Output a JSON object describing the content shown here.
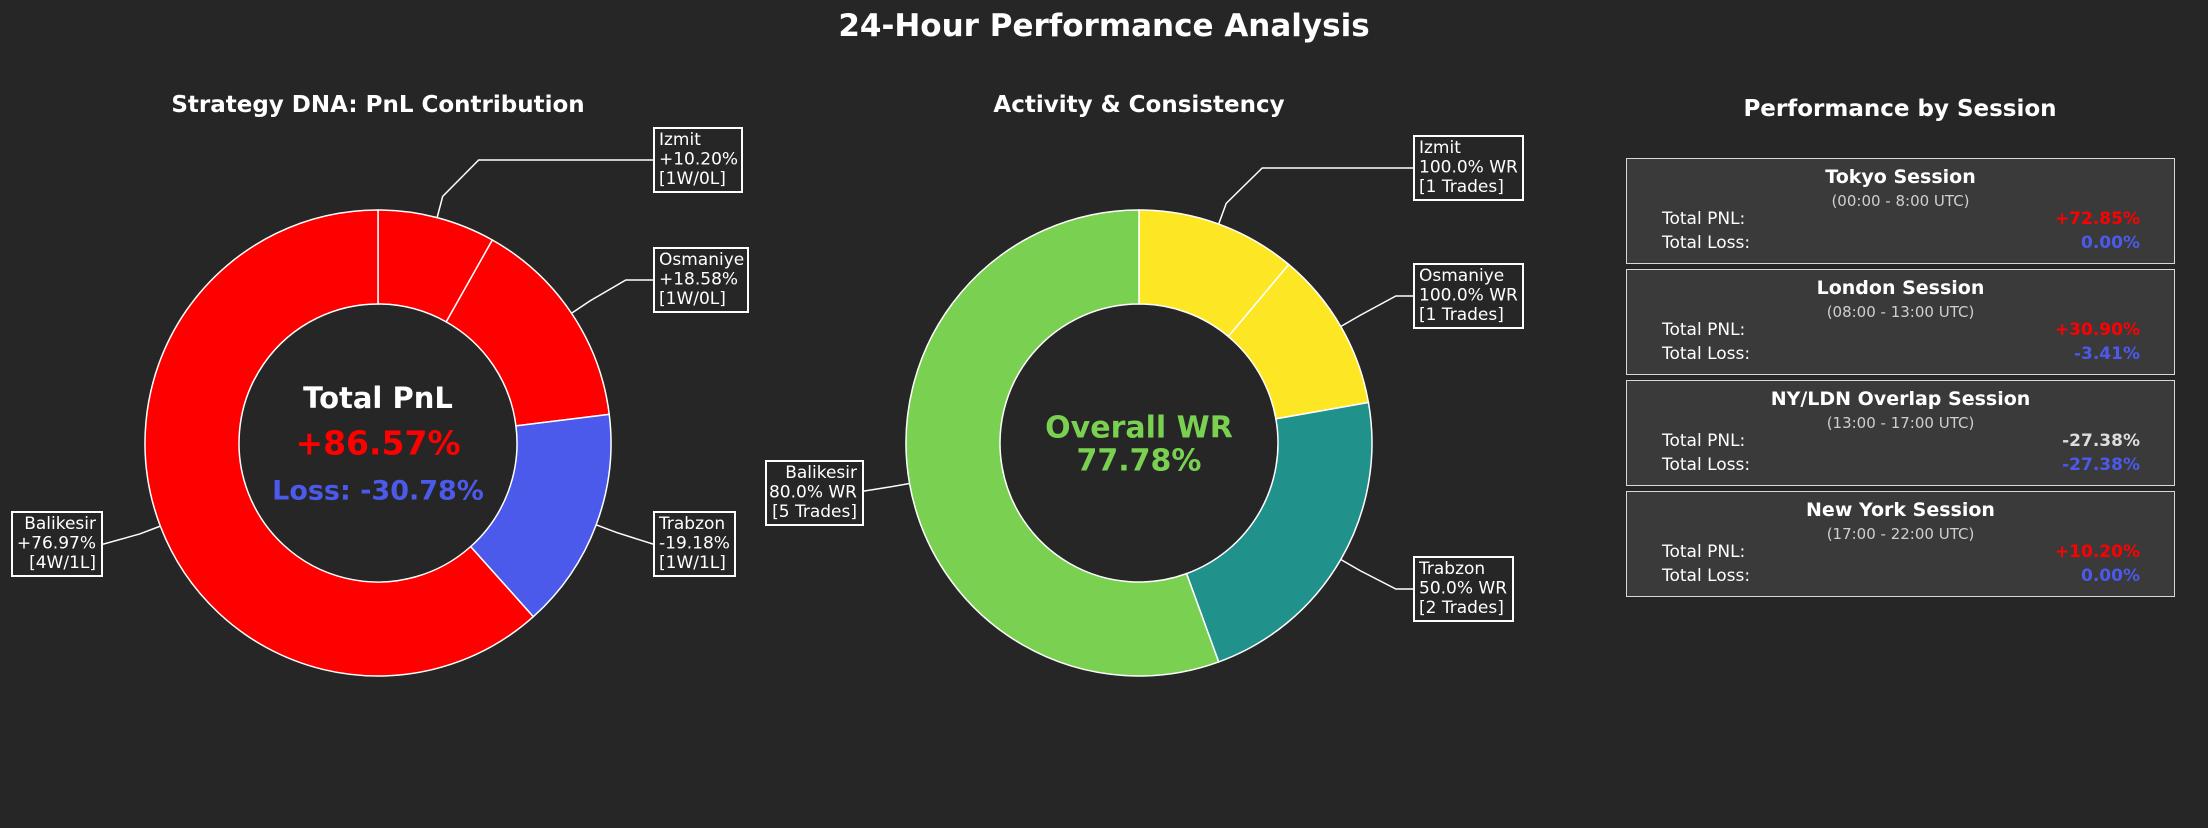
{
  "title": "24-Hour Performance Analysis",
  "colors": {
    "background": "#262626",
    "positive": "#ff0000",
    "negative": "#4b5aea",
    "neutral": "#dddddd",
    "wr_green": "#7ad151",
    "wr_yellow": "#fde725",
    "wr_teal": "#21918c"
  },
  "chart_data": [
    {
      "type": "pie",
      "title": "Strategy DNA: PnL Contribution",
      "center": {
        "heading": "Total PnL",
        "value": "+86.57%",
        "loss": "Loss: -30.78%"
      },
      "slices": [
        {
          "name": "Izmit",
          "value": 10.2,
          "color": "#ff0000",
          "label": [
            "Izmit",
            "+10.20%",
            "[1W/0L]"
          ]
        },
        {
          "name": "Osmaniye",
          "value": 18.58,
          "color": "#ff0000",
          "label": [
            "Osmaniye",
            "+18.58%",
            "[1W/0L]"
          ]
        },
        {
          "name": "Trabzon",
          "value": 19.18,
          "color": "#4b5aea",
          "label": [
            "Trabzon",
            "-19.18%",
            "[1W/1L]"
          ]
        },
        {
          "name": "Balikesir",
          "value": 76.97,
          "color": "#ff0000",
          "label": [
            "Balikesir",
            "+76.97%",
            "[4W/1L]"
          ]
        }
      ]
    },
    {
      "type": "pie",
      "title": "Activity & Consistency",
      "center": {
        "heading": "Overall WR",
        "value": "77.78%"
      },
      "slices": [
        {
          "name": "Izmit",
          "value": 1,
          "color": "#fde725",
          "label": [
            "Izmit",
            "100.0% WR",
            "[1 Trades]"
          ]
        },
        {
          "name": "Osmaniye",
          "value": 1,
          "color": "#fde725",
          "label": [
            "Osmaniye",
            "100.0% WR",
            "[1 Trades]"
          ]
        },
        {
          "name": "Trabzon",
          "value": 2,
          "color": "#21918c",
          "label": [
            "Trabzon",
            "50.0% WR",
            "[2 Trades]"
          ]
        },
        {
          "name": "Balikesir",
          "value": 5,
          "color": "#7ad151",
          "label": [
            "Balikesir",
            "80.0% WR",
            "[5 Trades]"
          ]
        }
      ]
    }
  ],
  "sessions_panel": {
    "title": "Performance by Session",
    "pnl_label": "Total PNL:",
    "loss_label": "Total Loss:",
    "items": [
      {
        "name": "Tokyo Session",
        "hours": "(00:00 - 8:00 UTC)",
        "pnl": "+72.85%",
        "pnl_color": "#ff0000",
        "loss": "0.00%",
        "loss_color": "#4b5aea"
      },
      {
        "name": "London Session",
        "hours": "(08:00 - 13:00 UTC)",
        "pnl": "+30.90%",
        "pnl_color": "#ff0000",
        "loss": "-3.41%",
        "loss_color": "#4b5aea"
      },
      {
        "name": "NY/LDN Overlap Session",
        "hours": "(13:00 - 17:00 UTC)",
        "pnl": "-27.38%",
        "pnl_color": "#dddddd",
        "loss": "-27.38%",
        "loss_color": "#4b5aea"
      },
      {
        "name": "New York Session",
        "hours": "(17:00 - 22:00 UTC)",
        "pnl": "+10.20%",
        "pnl_color": "#ff0000",
        "loss": "0.00%",
        "loss_color": "#4b5aea"
      }
    ]
  }
}
